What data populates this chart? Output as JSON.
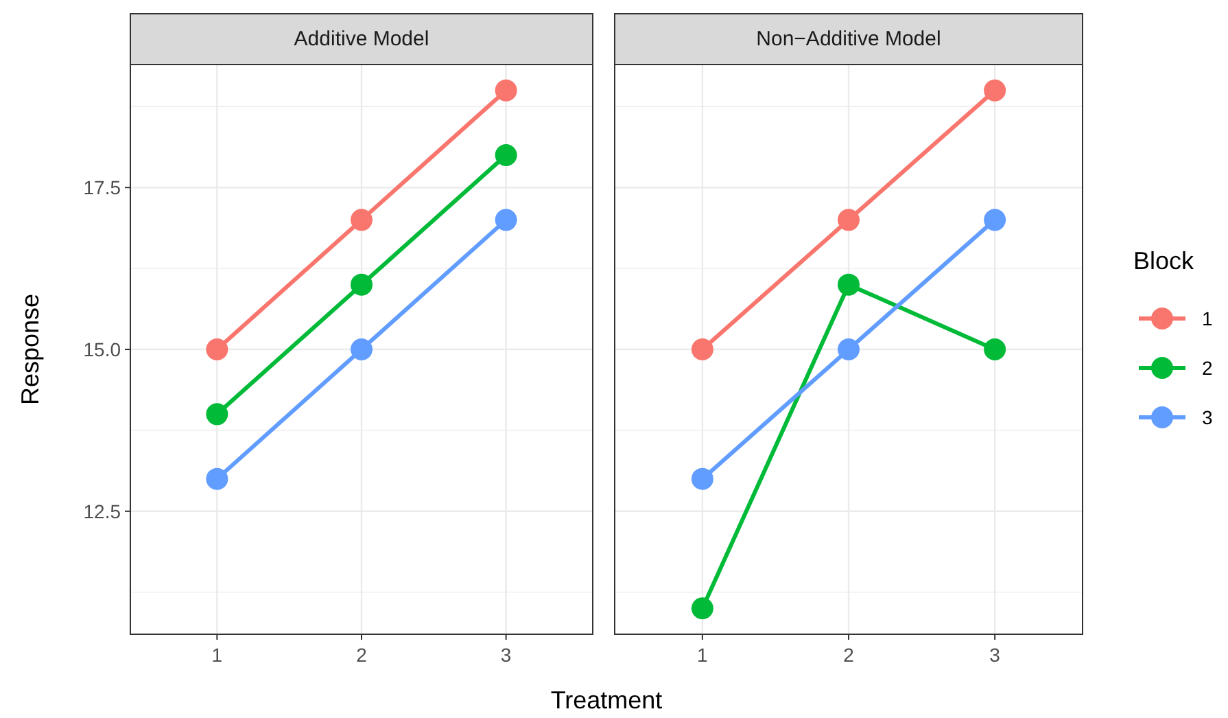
{
  "chart_data": [
    {
      "type": "line",
      "title": "Additive Model",
      "xlabel": "Treatment",
      "ylabel": "Response",
      "legend_title": "Block",
      "categories": [
        "1",
        "2",
        "3"
      ],
      "series": [
        {
          "name": "1",
          "color": "#f8766d",
          "values": [
            15,
            17,
            19
          ]
        },
        {
          "name": "2",
          "color": "#00ba38",
          "values": [
            14,
            16,
            18
          ]
        },
        {
          "name": "3",
          "color": "#619cff",
          "values": [
            13,
            15,
            17
          ]
        }
      ],
      "ylim": [
        10.6,
        19.4
      ],
      "yticks": [
        {
          "value": 12.5,
          "label": "12.5"
        },
        {
          "value": 15,
          "label": "15.0"
        },
        {
          "value": 17.5,
          "label": "17.5"
        }
      ],
      "grid": true,
      "marker": "circle",
      "line_style": "solid",
      "legend": "right"
    },
    {
      "type": "line",
      "title": "Non−Additive Model",
      "categories": [
        "1",
        "2",
        "3"
      ],
      "series": [
        {
          "color": "#f8766d",
          "values": [
            15,
            17,
            19
          ]
        },
        {
          "color": "#00ba38",
          "values": [
            11,
            16,
            15
          ]
        },
        {
          "color": "#619cff",
          "values": [
            13,
            15,
            17
          ]
        }
      ],
      "ylim": [
        10.6,
        19.4
      ],
      "yticks": [
        12.5,
        15,
        17.5
      ],
      "grid": true,
      "marker": "circle",
      "line_style": "solid",
      "tick_labels": "x"
    }
  ]
}
